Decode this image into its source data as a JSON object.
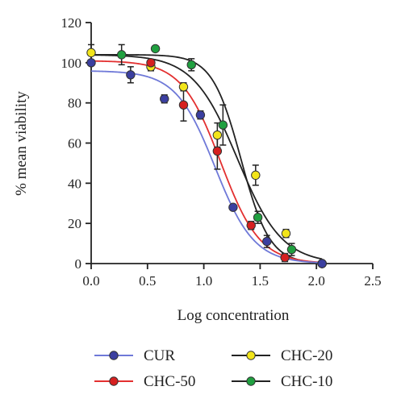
{
  "chart_data": {
    "type": "scatter",
    "xlabel": "Log concentration",
    "ylabel": "% mean viability",
    "xlim": [
      0,
      2.5
    ],
    "ylim": [
      0,
      120
    ],
    "x_ticks": [
      "0.0",
      "0.5",
      "1.0",
      "1.5",
      "2.0",
      "2.5"
    ],
    "y_ticks": [
      "0",
      "20",
      "40",
      "60",
      "80",
      "100",
      "120"
    ],
    "grid": false,
    "legend_position": "bottom",
    "series": [
      {
        "name": "CUR",
        "color": "#3b3fa0",
        "line_color": "#6f79d8",
        "fit": {
          "top": 96,
          "bottom": 0,
          "logic50": 1.1,
          "hill": 2.5
        },
        "points": [
          {
            "x": 0.0,
            "y": 100,
            "err": 1
          },
          {
            "x": 0.35,
            "y": 94,
            "err": 4
          },
          {
            "x": 0.65,
            "y": 82,
            "err": 2
          },
          {
            "x": 0.97,
            "y": 74,
            "err": 2
          },
          {
            "x": 1.26,
            "y": 28,
            "err": 1
          },
          {
            "x": 1.56,
            "y": 11,
            "err": 3
          },
          {
            "x": 2.05,
            "y": 0,
            "err": 1
          }
        ]
      },
      {
        "name": "CHC-50",
        "color": "#d62020",
        "line_color": "#e33030",
        "fit": {
          "top": 101,
          "bottom": 0,
          "logic50": 1.15,
          "hill": 2.5
        },
        "points": [
          {
            "x": 0.53,
            "y": 100,
            "err": 1
          },
          {
            "x": 0.82,
            "y": 79,
            "err": 8
          },
          {
            "x": 1.12,
            "y": 56,
            "err": 9
          },
          {
            "x": 1.42,
            "y": 19,
            "err": 2
          },
          {
            "x": 1.72,
            "y": 3,
            "err": 2
          },
          {
            "x": 2.05,
            "y": 0,
            "err": 1
          }
        ]
      },
      {
        "name": "CHC-20",
        "color": "#f2e51a",
        "line_color": "#222222",
        "fit": {
          "top": 104,
          "bottom": 0,
          "logic50": 1.3,
          "hill": 2.2
        },
        "points": [
          {
            "x": 0.0,
            "y": 105,
            "err": 4
          },
          {
            "x": 0.53,
            "y": 98,
            "err": 2
          },
          {
            "x": 0.82,
            "y": 88,
            "err": 2
          },
          {
            "x": 1.12,
            "y": 64,
            "err": 6
          },
          {
            "x": 1.46,
            "y": 44,
            "err": 5
          },
          {
            "x": 1.73,
            "y": 15,
            "err": 2
          },
          {
            "x": 2.05,
            "y": 0,
            "err": 1
          }
        ]
      },
      {
        "name": "CHC-10",
        "color": "#20a040",
        "line_color": "#222222",
        "fit": {
          "top": 104,
          "bottom": 0,
          "logic50": 1.33,
          "hill": 3.4
        },
        "points": [
          {
            "x": 0.27,
            "y": 104,
            "err": 5
          },
          {
            "x": 0.57,
            "y": 107,
            "err": 1
          },
          {
            "x": 0.89,
            "y": 99,
            "err": 3
          },
          {
            "x": 1.17,
            "y": 69,
            "err": 10
          },
          {
            "x": 1.48,
            "y": 23,
            "err": 3
          },
          {
            "x": 1.78,
            "y": 7,
            "err": 3
          },
          {
            "x": 2.05,
            "y": 0,
            "err": 1
          }
        ]
      }
    ]
  }
}
